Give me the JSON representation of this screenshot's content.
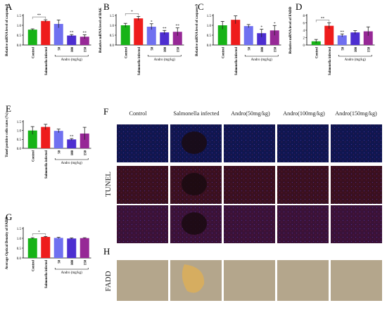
{
  "figure": {
    "categories": [
      "Control",
      "Salmonella infected",
      "50",
      "100",
      "150"
    ],
    "bar_colors": [
      "#17b317",
      "#ee1c1c",
      "#7070f0",
      "#4d2ed0",
      "#962896"
    ],
    "andro_label": "Andro (mg/kg)",
    "panel_letters": [
      "A",
      "B",
      "C",
      "D",
      "E",
      "F",
      "G",
      "H"
    ],
    "micro_col_labels": [
      "Control",
      "Salmonella infected",
      "Andro(50mg/kg)",
      "Andro(100mg/kg)",
      "Andro(150mg/kg)"
    ],
    "tunel_label": "TUNEL",
    "fadd_label": "FADD",
    "colors": {
      "tunel_bg": "#3a0f2c",
      "ihc_bg": "#b4a68c",
      "ihc_stain": "#dcae58"
    }
  },
  "chart_data": [
    {
      "panel": "A",
      "type": "bar",
      "ylabel": "Relative mRNA level of caspase-8",
      "ylim": [
        0,
        1.5
      ],
      "yticks": [
        0.0,
        0.5,
        1.0,
        1.5
      ],
      "values": [
        0.78,
        1.22,
        1.07,
        0.48,
        0.42
      ],
      "errors": [
        0.04,
        0.06,
        0.2,
        0.05,
        0.1
      ],
      "sig_labels": [
        "",
        "",
        "",
        "**",
        "**"
      ],
      "bracket": "**"
    },
    {
      "panel": "B",
      "type": "bar",
      "ylabel": "Relative mRNA level of BAK",
      "ylim": [
        0,
        1.5
      ],
      "yticks": [
        0.0,
        0.5,
        1.0,
        1.5
      ],
      "values": [
        1.0,
        1.35,
        0.93,
        0.64,
        0.67
      ],
      "errors": [
        0.1,
        0.1,
        0.15,
        0.1,
        0.2
      ],
      "sig_labels": [
        "",
        "",
        "*",
        "**",
        "**"
      ],
      "bracket": "*"
    },
    {
      "panel": "C",
      "type": "bar",
      "ylabel": "Relative mRNA level of caspase-9",
      "ylim": [
        0,
        1.5
      ],
      "yticks": [
        0.0,
        0.5,
        1.0,
        1.5
      ],
      "values": [
        1.0,
        1.28,
        0.96,
        0.6,
        0.74
      ],
      "errors": [
        0.2,
        0.2,
        0.08,
        0.2,
        0.25
      ],
      "sig_labels": [
        "",
        "",
        "",
        "*",
        "*"
      ],
      "bracket": ""
    },
    {
      "panel": "D",
      "type": "bar",
      "ylabel": "Relative mRNA level of FADD",
      "ylim": [
        0,
        8
      ],
      "yticks": [
        0,
        2,
        4,
        6,
        8
      ],
      "values": [
        1.0,
        5.2,
        2.6,
        3.4,
        3.7
      ],
      "errors": [
        0.5,
        0.8,
        0.4,
        0.5,
        1.2
      ],
      "sig_labels": [
        "",
        "",
        "**",
        "",
        ""
      ],
      "bracket": "**"
    },
    {
      "panel": "E",
      "type": "bar",
      "ylabel": "Tunel positive cells rates (%)",
      "ylim": [
        0,
        1.5
      ],
      "yticks": [
        0.0,
        0.5,
        1.0,
        1.5
      ],
      "values": [
        1.0,
        1.2,
        0.98,
        0.5,
        0.83
      ],
      "errors": [
        0.22,
        0.15,
        0.1,
        0.05,
        0.35
      ],
      "sig_labels": [
        "",
        "",
        "",
        "**",
        ""
      ],
      "bracket": ""
    },
    {
      "panel": "G",
      "type": "bar",
      "ylabel": "Average Optical Density of FADD",
      "ylim": [
        0,
        1.5
      ],
      "yticks": [
        0.0,
        0.5,
        1.0,
        1.5
      ],
      "values": [
        1.0,
        1.07,
        1.02,
        0.99,
        1.01
      ],
      "errors": [
        0.03,
        0.02,
        0.03,
        0.03,
        0.02
      ],
      "sig_labels": [
        "",
        "",
        "",
        "",
        ""
      ],
      "bracket": "*"
    }
  ]
}
